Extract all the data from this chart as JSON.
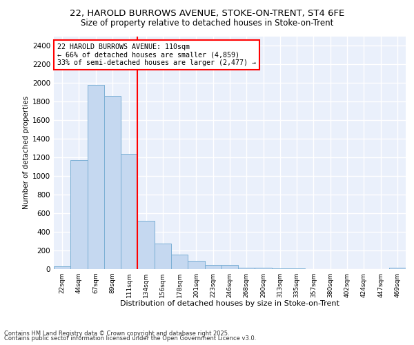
{
  "title_line1": "22, HAROLD BURROWS AVENUE, STOKE-ON-TRENT, ST4 6FE",
  "title_line2": "Size of property relative to detached houses in Stoke-on-Trent",
  "xlabel": "Distribution of detached houses by size in Stoke-on-Trent",
  "ylabel": "Number of detached properties",
  "categories": [
    "22sqm",
    "44sqm",
    "67sqm",
    "89sqm",
    "111sqm",
    "134sqm",
    "156sqm",
    "178sqm",
    "201sqm",
    "223sqm",
    "246sqm",
    "268sqm",
    "290sqm",
    "313sqm",
    "335sqm",
    "357sqm",
    "380sqm",
    "402sqm",
    "424sqm",
    "447sqm",
    "469sqm"
  ],
  "values": [
    28,
    1170,
    1980,
    1860,
    1240,
    520,
    275,
    155,
    90,
    42,
    42,
    18,
    15,
    8,
    4,
    3,
    2,
    1,
    1,
    1,
    15
  ],
  "bar_color": "#c5d8f0",
  "bar_edge_color": "#7aafd4",
  "vline_x": 4.5,
  "vline_color": "red",
  "annotation_text": "22 HAROLD BURROWS AVENUE: 110sqm\n← 66% of detached houses are smaller (4,859)\n33% of semi-detached houses are larger (2,477) →",
  "annotation_box_color": "white",
  "annotation_box_edge_color": "red",
  "ylim": [
    0,
    2500
  ],
  "yticks": [
    0,
    200,
    400,
    600,
    800,
    1000,
    1200,
    1400,
    1600,
    1800,
    2000,
    2200,
    2400
  ],
  "footer_line1": "Contains HM Land Registry data © Crown copyright and database right 2025.",
  "footer_line2": "Contains public sector information licensed under the Open Government Licence v3.0.",
  "bg_color": "#eaf0fb",
  "grid_color": "white",
  "fig_bg_color": "white"
}
